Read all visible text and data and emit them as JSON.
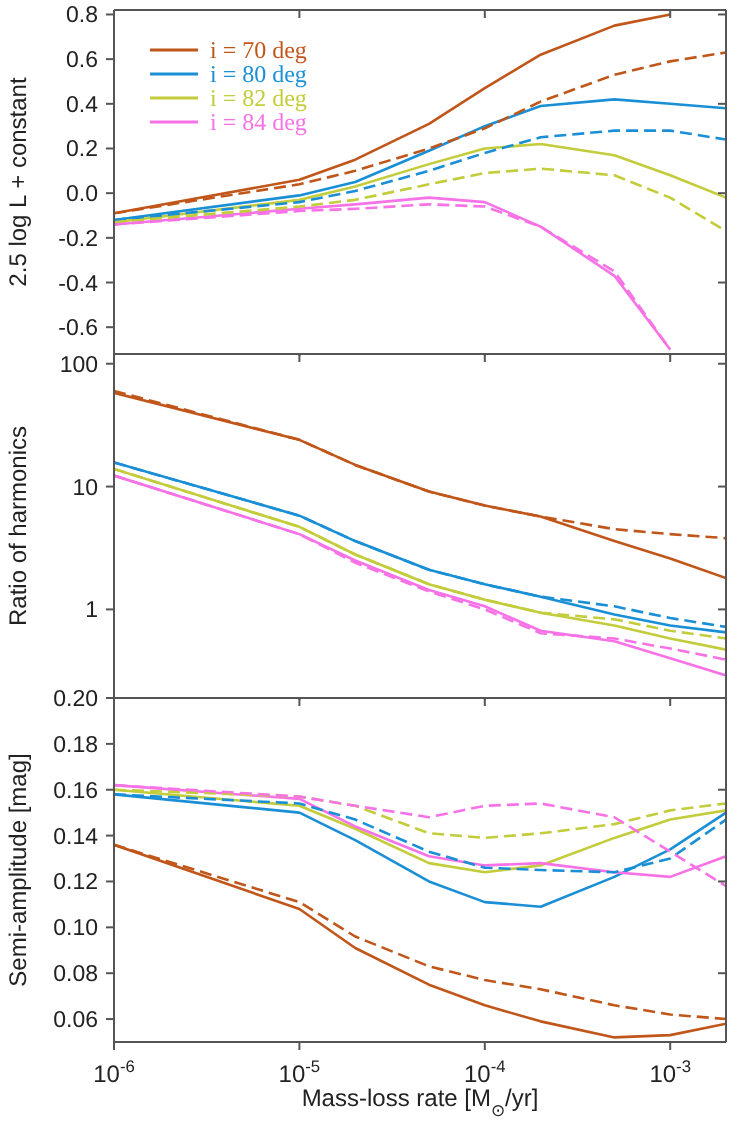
{
  "chart_data": [
    {
      "type": "line",
      "ylabel": "2.5 log L + constant",
      "legend": "top left",
      "tick_labels": "y",
      "log": "x",
      "x": [
        1e-06,
        1e-05,
        2e-05,
        5e-05,
        0.0001,
        0.0002,
        0.0005,
        0.001,
        0.002
      ],
      "xlim": [
        1e-06,
        0.002
      ],
      "xticks": [
        {
          "value": 1e-06,
          "label": null
        },
        {
          "value": 1e-05,
          "label": null
        },
        {
          "value": 0.0001,
          "label": null
        },
        {
          "value": 0.001,
          "label": null
        }
      ],
      "ylim": [
        -0.72,
        0.82
      ],
      "yticks": [
        {
          "value": -0.6,
          "label": "-0.6"
        },
        {
          "value": -0.4,
          "label": "-0.4"
        },
        {
          "value": -0.2,
          "label": "-0.2"
        },
        {
          "value": 0,
          "label": "0.0"
        },
        {
          "value": 0.2,
          "label": "0.2"
        },
        {
          "value": 0.4,
          "label": "0.4"
        },
        {
          "value": 0.6,
          "label": "0.6"
        },
        {
          "value": 0.8,
          "label": "0.8"
        }
      ],
      "series": [
        {
          "name": "i = 70 deg",
          "color": "#c0561a",
          "line_style": "solid",
          "values": [
            -0.09,
            0.06,
            0.15,
            0.31,
            0.47,
            0.62,
            0.75,
            0.8,
            null
          ]
        },
        {
          "name": "i = 80 deg",
          "color": "#1a8fd6",
          "line_style": "solid",
          "values": [
            -0.12,
            -0.01,
            0.05,
            0.19,
            0.3,
            0.39,
            0.42,
            0.4,
            0.38
          ]
        },
        {
          "name": "i = 82 deg",
          "color": "#c3cc3a",
          "line_style": "solid",
          "values": [
            -0.13,
            -0.03,
            0.03,
            0.13,
            0.2,
            0.22,
            0.17,
            0.08,
            -0.02
          ]
        },
        {
          "name": "i = 84 deg",
          "color": "#f772e6",
          "line_style": "solid",
          "values": [
            -0.14,
            -0.07,
            -0.05,
            -0.02,
            -0.04,
            -0.15,
            -0.37,
            -0.7,
            null
          ]
        },
        {
          "color": "#c0561a",
          "line_style": "dashed",
          "values": [
            -0.09,
            0.04,
            0.1,
            0.2,
            0.29,
            0.41,
            0.53,
            0.59,
            0.63
          ]
        },
        {
          "color": "#1a8fd6",
          "line_style": "dashed",
          "values": [
            -0.12,
            -0.04,
            0.01,
            0.1,
            0.18,
            0.25,
            0.28,
            0.28,
            0.24
          ]
        },
        {
          "color": "#c3cc3a",
          "line_style": "dashed",
          "values": [
            -0.13,
            -0.06,
            -0.03,
            0.04,
            0.09,
            0.11,
            0.08,
            -0.02,
            -0.17
          ]
        },
        {
          "color": "#f772e6",
          "line_style": "dashed",
          "values": [
            -0.14,
            -0.08,
            -0.07,
            -0.05,
            -0.06,
            -0.15,
            -0.35,
            -0.7,
            null
          ]
        }
      ]
    },
    {
      "type": "line",
      "ylabel": "Ratio of harmonics",
      "tick_labels": "y",
      "log": "xy",
      "x": [
        1e-06,
        1e-05,
        2e-05,
        5e-05,
        0.0001,
        0.0002,
        0.0005,
        0.001,
        0.002
      ],
      "xlim": [
        1e-06,
        0.002
      ],
      "xticks": [
        {
          "value": 1e-06,
          "label": null
        },
        {
          "value": 1e-05,
          "label": null
        },
        {
          "value": 0.0001,
          "label": null
        },
        {
          "value": 0.001,
          "label": null
        }
      ],
      "ylim": [
        0.19,
        120
      ],
      "yticks": [
        1,
        10,
        100
      ],
      "series": [
        {
          "color": "#c0561a",
          "line_style": "solid",
          "values": [
            58,
            24,
            15,
            9.1,
            7,
            5.7,
            3.6,
            2.6,
            1.8
          ]
        },
        {
          "color": "#1a8fd6",
          "line_style": "solid",
          "values": [
            15.7,
            5.8,
            3.6,
            2.1,
            1.6,
            1.27,
            0.91,
            0.74,
            0.65
          ]
        },
        {
          "color": "#c3cc3a",
          "line_style": "solid",
          "values": [
            13.9,
            4.7,
            2.8,
            1.6,
            1.2,
            0.94,
            0.74,
            0.58,
            0.47
          ]
        },
        {
          "color": "#f772e6",
          "line_style": "solid",
          "values": [
            12.3,
            4.1,
            2.5,
            1.44,
            1.06,
            0.67,
            0.55,
            0.4,
            0.29
          ]
        },
        {
          "color": "#c0561a",
          "line_style": "dashed",
          "values": [
            60,
            24,
            15,
            9.1,
            7,
            5.7,
            4.5,
            4.1,
            3.8
          ]
        },
        {
          "color": "#1a8fd6",
          "line_style": "dashed",
          "values": [
            15.7,
            5.8,
            3.6,
            2.1,
            1.6,
            1.27,
            1.06,
            0.85,
            0.72
          ]
        },
        {
          "color": "#c3cc3a",
          "line_style": "dashed",
          "values": [
            13.9,
            4.7,
            2.8,
            1.6,
            1.2,
            0.94,
            0.83,
            0.67,
            0.58
          ]
        },
        {
          "color": "#f772e6",
          "line_style": "dashed",
          "values": [
            12.3,
            4.1,
            2.4,
            1.4,
            1.0,
            0.64,
            0.58,
            0.48,
            0.39
          ]
        }
      ]
    },
    {
      "type": "line",
      "xlabel": "Mass-loss rate [M$_{⊙}$/yr]",
      "ylabel": "Semi-amplitude [mag]",
      "log": "x",
      "x": [
        1e-06,
        1e-05,
        2e-05,
        5e-05,
        0.0001,
        0.0002,
        0.0005,
        0.001,
        0.002
      ],
      "xlim": [
        1e-06,
        0.002
      ],
      "xticks": [
        {
          "value": 1e-06,
          "label": "10$^{-6}$"
        },
        {
          "value": 1e-05,
          "label": "10$^{-5}$"
        },
        {
          "value": 0.0001,
          "label": "10$^{-4}$"
        },
        {
          "value": 0.001,
          "label": "10$^{-3}$"
        }
      ],
      "ylim": [
        0.05,
        0.2
      ],
      "yticks": [
        0.06,
        0.08,
        {
          "value": 0.1,
          "label": "0.10"
        },
        0.12,
        0.14,
        0.16,
        0.18,
        {
          "value": 0.2,
          "label": "0.20"
        }
      ],
      "series": [
        {
          "color": "#c0561a",
          "line_style": "solid",
          "values": [
            0.136,
            0.108,
            0.091,
            0.075,
            0.066,
            0.059,
            0.052,
            0.053,
            0.058
          ]
        },
        {
          "color": "#1a8fd6",
          "line_style": "solid",
          "values": [
            0.158,
            0.15,
            0.138,
            0.12,
            0.111,
            0.109,
            0.122,
            0.134,
            0.15
          ]
        },
        {
          "color": "#c3cc3a",
          "line_style": "solid",
          "values": [
            0.16,
            0.153,
            0.143,
            0.128,
            0.124,
            0.127,
            0.139,
            0.147,
            0.151
          ]
        },
        {
          "color": "#f772e6",
          "line_style": "solid",
          "values": [
            0.162,
            0.156,
            0.144,
            0.131,
            0.127,
            0.128,
            0.124,
            0.122,
            0.131
          ]
        },
        {
          "color": "#c0561a",
          "line_style": "dashed",
          "values": [
            0.136,
            0.111,
            0.096,
            0.083,
            0.077,
            0.073,
            0.066,
            0.062,
            0.06
          ]
        },
        {
          "color": "#1a8fd6",
          "line_style": "dashed",
          "values": [
            0.158,
            0.154,
            0.147,
            0.133,
            0.126,
            0.125,
            0.124,
            0.13,
            0.147
          ]
        },
        {
          "color": "#c3cc3a",
          "line_style": "dashed",
          "values": [
            0.16,
            0.157,
            0.153,
            0.141,
            0.139,
            0.141,
            0.145,
            0.151,
            0.154
          ]
        },
        {
          "color": "#f772e6",
          "line_style": "dashed",
          "values": [
            0.162,
            0.157,
            0.153,
            0.148,
            0.153,
            0.154,
            0.148,
            0.133,
            0.118
          ]
        }
      ]
    }
  ]
}
